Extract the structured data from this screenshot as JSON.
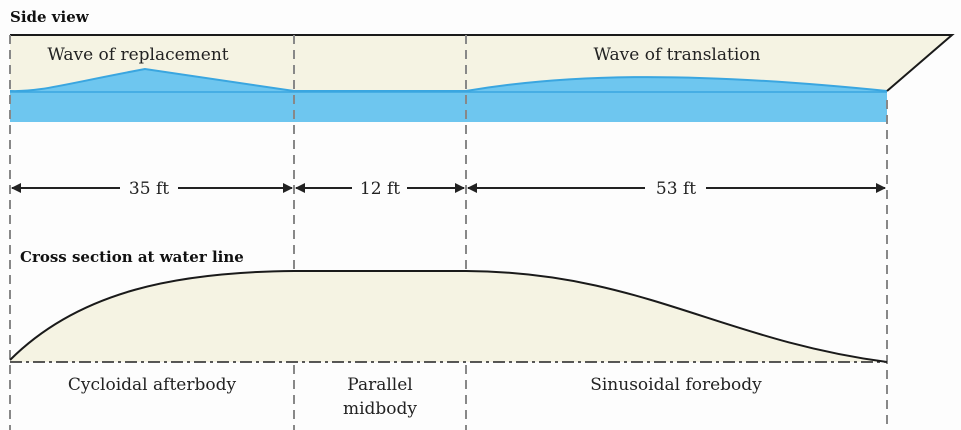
{
  "side_view": {
    "title": "Side view",
    "wave_left": "Wave of replacement",
    "wave_right": "Wave of translation"
  },
  "dimensions": [
    {
      "label": "35 ft",
      "length_ft": 35
    },
    {
      "label": "12 ft",
      "length_ft": 12
    },
    {
      "label": "53 ft",
      "length_ft": 53
    }
  ],
  "cross_section": {
    "title": "Cross section at water line",
    "sections": [
      {
        "label_line1": "Cycloidal afterbody",
        "label_line2": ""
      },
      {
        "label_line1": "Parallel",
        "label_line2": "midbody"
      },
      {
        "label_line1": "Sinusoidal forebody",
        "label_line2": ""
      }
    ]
  },
  "colors": {
    "hull": "#f5f3e3",
    "water": "#6ec6ef",
    "wave_line": "#3aa6e0",
    "outline": "#1a1a1a",
    "guide": "#888888"
  }
}
